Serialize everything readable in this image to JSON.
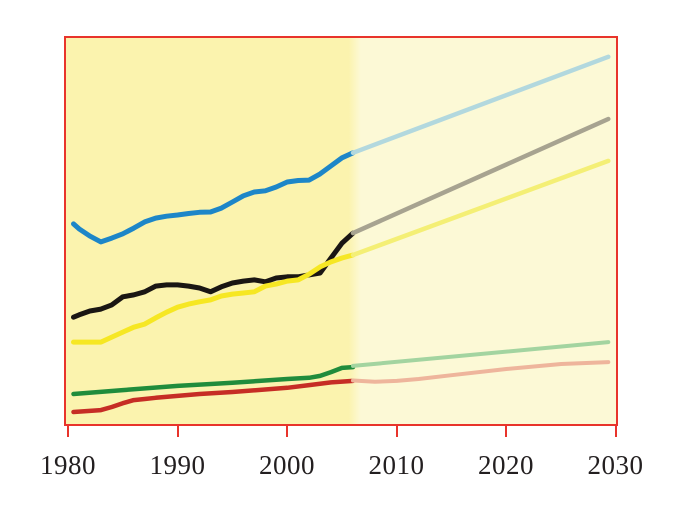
{
  "figure": {
    "title": "",
    "frame_border_color": "#e8342b",
    "history_band_color": "#fbf3ae",
    "projection_band_color": "#fcf9d6",
    "tick_color": "#e8342b",
    "tick_label_color": "#231f20",
    "outer_background": "#ffffff"
  },
  "chart_data": {
    "type": "line",
    "title": "",
    "xlabel": "",
    "ylabel": "",
    "legend": "none",
    "grid": false,
    "x_range": [
      1980,
      2030
    ],
    "y_range": [
      0,
      100
    ],
    "y_units": "relative scale 0-100 (y-axis unlabeled in source image)",
    "x_ticks": [
      1980,
      1990,
      2000,
      2010,
      2020,
      2030
    ],
    "x_tick_labels": [
      "1980",
      "1990",
      "2000",
      "2010",
      "2020",
      "2030"
    ],
    "history_span": [
      1980,
      2006
    ],
    "projection_span": [
      2006,
      2030
    ],
    "series": [
      {
        "name": "blue-line-history",
        "color": "#1d86c8",
        "width": 5,
        "x": [
          1980.5,
          1981,
          1982,
          1983,
          1984,
          1985,
          1986,
          1987,
          1988,
          1989,
          1990,
          1991,
          1992,
          1993,
          1994,
          1995,
          1996,
          1997,
          1998,
          1999,
          2000,
          2001,
          2002,
          2003,
          2004,
          2005,
          2006
        ],
        "y": [
          51.6,
          50.3,
          48.4,
          46.9,
          47.9,
          49.0,
          50.5,
          52.1,
          53.1,
          53.6,
          53.9,
          54.3,
          54.6,
          54.7,
          55.7,
          57.3,
          58.9,
          59.9,
          60.2,
          61.2,
          62.5,
          62.9,
          63.0,
          64.6,
          66.7,
          68.8,
          70.1
        ]
      },
      {
        "name": "blue-line-projection",
        "color": "#b2d8de",
        "width": 4.5,
        "x": [
          2006,
          2029.3
        ],
        "y": [
          70.1,
          95.1
        ]
      },
      {
        "name": "black-line-history",
        "color": "#1a1613",
        "width": 5,
        "x": [
          1980.5,
          1981,
          1982,
          1983,
          1984,
          1985,
          1986,
          1987,
          1988,
          1989,
          1990,
          1991,
          1992,
          1993,
          1994,
          1995,
          1996,
          1997,
          1998,
          1999,
          2000,
          2001,
          2002,
          2003,
          2004,
          2005,
          2006
        ],
        "y": [
          27.3,
          27.9,
          28.9,
          29.4,
          30.5,
          32.6,
          33.1,
          33.9,
          35.4,
          35.7,
          35.7,
          35.4,
          34.9,
          33.9,
          35.2,
          36.2,
          36.7,
          37.0,
          36.5,
          37.5,
          37.8,
          37.8,
          38.3,
          38.8,
          42.7,
          46.6,
          49.2
        ]
      },
      {
        "name": "black-line-projection",
        "color": "#a7a390",
        "width": 4.5,
        "x": [
          2006,
          2029.3
        ],
        "y": [
          49.2,
          78.9
        ]
      },
      {
        "name": "yellow-line-history",
        "color": "#f6e723",
        "width": 5,
        "x": [
          1980.5,
          1981,
          1982,
          1983,
          1984,
          1985,
          1986,
          1987,
          1988,
          1989,
          1990,
          1991,
          1992,
          1993,
          1994,
          1995,
          1996,
          1997,
          1998,
          1999,
          2000,
          2001,
          2002,
          2003,
          2004,
          2005,
          2006
        ],
        "y": [
          20.8,
          20.8,
          20.8,
          20.8,
          22.1,
          23.4,
          24.7,
          25.5,
          27.1,
          28.6,
          29.9,
          30.7,
          31.3,
          31.8,
          32.8,
          33.3,
          33.6,
          33.9,
          35.4,
          35.9,
          36.7,
          37.0,
          38.5,
          40.4,
          41.7,
          42.7,
          43.5
        ]
      },
      {
        "name": "yellow-line-projection",
        "color": "#f4ef75",
        "width": 4.5,
        "x": [
          2006,
          2029.3
        ],
        "y": [
          43.5,
          68.0
        ]
      },
      {
        "name": "green-line-history",
        "color": "#208c3c",
        "width": 4.5,
        "x": [
          1980.5,
          1985,
          1990,
          1995,
          2000,
          2002,
          2003,
          2004,
          2005,
          2006
        ],
        "y": [
          7.3,
          8.3,
          9.4,
          10.2,
          11.2,
          11.5,
          12.0,
          13.0,
          14.1,
          14.3
        ]
      },
      {
        "name": "green-line-projection",
        "color": "#a3d4a0",
        "width": 4,
        "x": [
          2006,
          2029.3
        ],
        "y": [
          14.6,
          20.8
        ]
      },
      {
        "name": "red-line-history",
        "color": "#c62d25",
        "width": 4.5,
        "x": [
          1980.5,
          1982,
          1983,
          1984,
          1985,
          1986,
          1987,
          1988,
          1990,
          1992,
          1995,
          2000,
          2002,
          2004,
          2006
        ],
        "y": [
          2.6,
          2.9,
          3.1,
          3.9,
          4.9,
          5.7,
          6.0,
          6.3,
          6.8,
          7.3,
          7.8,
          8.9,
          9.6,
          10.3,
          10.7
        ]
      },
      {
        "name": "red-line-projection",
        "color": "#eeb59c",
        "width": 4,
        "x": [
          2006,
          2008,
          2010,
          2012,
          2015,
          2020,
          2025,
          2029.3
        ],
        "y": [
          10.8,
          10.5,
          10.7,
          11.2,
          12.2,
          13.8,
          15.1,
          15.6
        ]
      }
    ]
  }
}
